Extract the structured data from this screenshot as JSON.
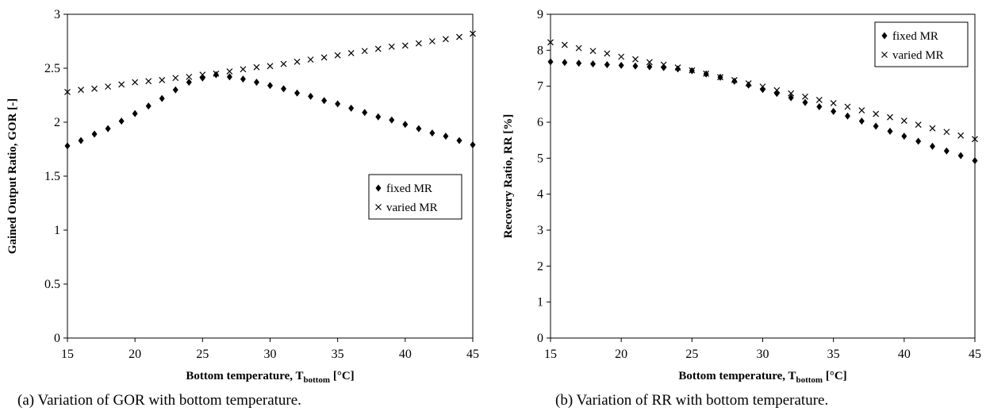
{
  "chart_data": [
    {
      "type": "scatter",
      "xlabel_main": "Bottom  temperature, T",
      "xlabel_sub": "bottom",
      "xlabel_unit": " [°C]",
      "ylabel": "Gained Output Ratio, GOR [-]",
      "xlim": [
        15,
        45
      ],
      "ylim": [
        0,
        3
      ],
      "xticks": [
        15,
        20,
        25,
        30,
        35,
        40,
        45
      ],
      "yticks": [
        0,
        0.5,
        1,
        1.5,
        2,
        2.5,
        3
      ],
      "ytick_labels": [
        "0",
        "0.5",
        "1",
        "1.5",
        "2",
        "2.5",
        "3"
      ],
      "legend_position": "center-right",
      "grid": false,
      "series": [
        {
          "name": "fixed MR",
          "marker": "diamond",
          "x": [
            15,
            16,
            17,
            18,
            19,
            20,
            21,
            22,
            23,
            24,
            25,
            26,
            27,
            28,
            29,
            30,
            31,
            32,
            33,
            34,
            35,
            36,
            37,
            38,
            39,
            40,
            41,
            42,
            43,
            44,
            45
          ],
          "y": [
            1.78,
            1.83,
            1.89,
            1.94,
            2.01,
            2.08,
            2.15,
            2.22,
            2.3,
            2.37,
            2.41,
            2.44,
            2.42,
            2.4,
            2.37,
            2.34,
            2.31,
            2.27,
            2.24,
            2.2,
            2.17,
            2.13,
            2.09,
            2.05,
            2.02,
            1.98,
            1.94,
            1.9,
            1.87,
            1.83,
            1.79
          ]
        },
        {
          "name": "varied MR",
          "marker": "cross",
          "x": [
            15,
            16,
            17,
            18,
            19,
            20,
            21,
            22,
            23,
            24,
            25,
            26,
            27,
            28,
            29,
            30,
            31,
            32,
            33,
            34,
            35,
            36,
            37,
            38,
            39,
            40,
            41,
            42,
            43,
            44,
            45
          ],
          "y": [
            2.28,
            2.3,
            2.31,
            2.33,
            2.35,
            2.37,
            2.38,
            2.39,
            2.41,
            2.42,
            2.44,
            2.45,
            2.47,
            2.49,
            2.51,
            2.52,
            2.54,
            2.56,
            2.58,
            2.6,
            2.62,
            2.64,
            2.66,
            2.68,
            2.7,
            2.71,
            2.73,
            2.75,
            2.77,
            2.79,
            2.82
          ]
        }
      ],
      "caption": "(a)  Variation of GOR with bottom temperature."
    },
    {
      "type": "scatter",
      "xlabel_main": "Bottom  temperature, T",
      "xlabel_sub": "bottom",
      "xlabel_unit": " [°C]",
      "ylabel": "Recovery Ratio, RR [%]",
      "xlim": [
        15,
        45
      ],
      "ylim": [
        0,
        9
      ],
      "xticks": [
        15,
        20,
        25,
        30,
        35,
        40,
        45
      ],
      "yticks": [
        0,
        1,
        2,
        3,
        4,
        5,
        6,
        7,
        8,
        9
      ],
      "ytick_labels": [
        "0",
        "1",
        "2",
        "3",
        "4",
        "5",
        "6",
        "7",
        "8",
        "9"
      ],
      "legend_position": "top-right",
      "grid": false,
      "series": [
        {
          "name": "fixed MR",
          "marker": "diamond",
          "x": [
            15,
            16,
            17,
            18,
            19,
            20,
            21,
            22,
            23,
            24,
            25,
            26,
            27,
            28,
            29,
            30,
            31,
            32,
            33,
            34,
            35,
            36,
            37,
            38,
            39,
            40,
            41,
            42,
            43,
            44,
            45
          ],
          "y": [
            7.68,
            7.66,
            7.64,
            7.62,
            7.6,
            7.58,
            7.56,
            7.54,
            7.52,
            7.48,
            7.43,
            7.34,
            7.25,
            7.14,
            7.03,
            6.91,
            6.8,
            6.68,
            6.55,
            6.43,
            6.3,
            6.17,
            6.03,
            5.89,
            5.75,
            5.61,
            5.47,
            5.33,
            5.2,
            5.07,
            4.93
          ]
        },
        {
          "name": "varied MR",
          "marker": "cross",
          "x": [
            15,
            16,
            17,
            18,
            19,
            20,
            21,
            22,
            23,
            24,
            25,
            26,
            27,
            28,
            29,
            30,
            31,
            32,
            33,
            34,
            35,
            36,
            37,
            38,
            39,
            40,
            41,
            42,
            43,
            44,
            45
          ],
          "y": [
            8.22,
            8.15,
            8.06,
            7.98,
            7.91,
            7.82,
            7.75,
            7.67,
            7.6,
            7.52,
            7.44,
            7.35,
            7.25,
            7.17,
            7.08,
            6.99,
            6.89,
            6.8,
            6.71,
            6.62,
            6.53,
            6.43,
            6.33,
            6.23,
            6.14,
            6.04,
            5.93,
            5.83,
            5.73,
            5.63,
            5.53
          ]
        }
      ],
      "caption": "(b)  Variation of RR with bottom temperature."
    }
  ]
}
